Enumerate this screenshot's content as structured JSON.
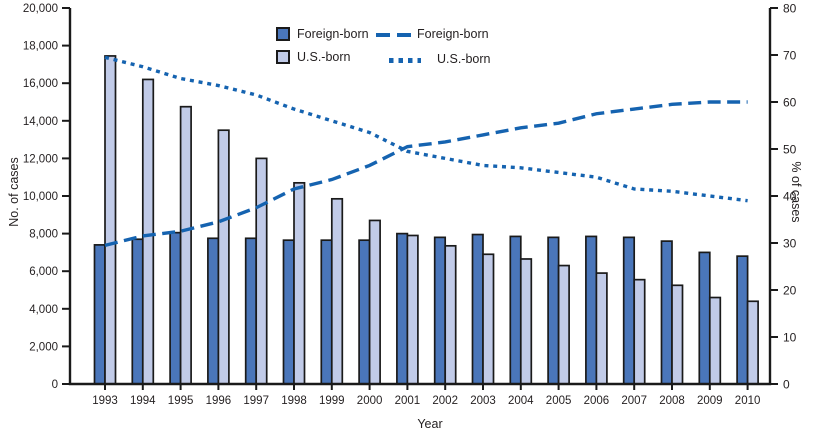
{
  "chart_data": {
    "type": "bar",
    "subtype": "grouped-bars-with-percent-lines",
    "title": "",
    "x": {
      "label": "Year",
      "categories": [
        "1993",
        "1994",
        "1995",
        "1996",
        "1997",
        "1998",
        "1999",
        "2000",
        "2001",
        "2002",
        "2003",
        "2004",
        "2005",
        "2006",
        "2007",
        "2008",
        "2009",
        "2010"
      ]
    },
    "y_left": {
      "label": "No. of cases",
      "min": 0,
      "max": 20000,
      "tick_step": 2000,
      "tick_labels": [
        "0",
        "2,000",
        "4,000",
        "6,000",
        "8,000",
        "10,000",
        "12,000",
        "14,000",
        "16,000",
        "18,000",
        "20,000"
      ]
    },
    "y_right": {
      "label": "% of cases",
      "min": 0,
      "max": 80,
      "tick_step": 10,
      "tick_labels": [
        "0",
        "10",
        "20",
        "30",
        "40",
        "50",
        "60",
        "70",
        "80"
      ]
    },
    "series": [
      {
        "name": "Foreign-born",
        "kind": "bar",
        "axis": "left",
        "color": "#4a76ba",
        "values": [
          7400,
          7700,
          8050,
          7750,
          7750,
          7650,
          7650,
          7650,
          8000,
          7800,
          7950,
          7850,
          7800,
          7850,
          7800,
          7600,
          7000,
          6800
        ]
      },
      {
        "name": "U.S.-born",
        "kind": "bar",
        "axis": "left",
        "color": "#c1cbe8",
        "values": [
          17450,
          16200,
          14750,
          13500,
          12000,
          10700,
          9850,
          8700,
          7900,
          7350,
          6900,
          6650,
          6300,
          5900,
          5550,
          5250,
          4600,
          4400
        ]
      },
      {
        "name": "Foreign-born",
        "kind": "line",
        "dash": "dashed",
        "axis": "right",
        "color": "#1563b0",
        "values": [
          29.5,
          31.5,
          32.5,
          34.5,
          37.5,
          41.5,
          43.5,
          46.5,
          50.5,
          51.5,
          53,
          54.5,
          55.5,
          57.5,
          58.5,
          59.5,
          60,
          60
        ]
      },
      {
        "name": "U.S.-born",
        "kind": "line",
        "dash": "dotted",
        "axis": "right",
        "color": "#1563b0",
        "values": [
          69.5,
          67.5,
          65,
          63.5,
          61.5,
          58.5,
          56,
          53.5,
          49.5,
          48,
          46.5,
          46,
          45,
          44,
          41.5,
          41,
          40,
          39
        ]
      }
    ],
    "legend": {
      "bar_entries": [
        {
          "label": "Foreign-born"
        },
        {
          "label": "U.S.-born"
        }
      ],
      "line_entries": [
        {
          "label": "Foreign-born"
        },
        {
          "label": "U.S.-born"
        }
      ]
    },
    "colors": {
      "axis": "#1a1a1a",
      "text": "#231f20",
      "bar_foreign_born": "#4a76ba",
      "bar_us_born": "#c1cbe8",
      "line_blue": "#1563b0"
    },
    "layout_hints": {
      "grid": "off",
      "legend_position": "top-center-inside"
    }
  }
}
